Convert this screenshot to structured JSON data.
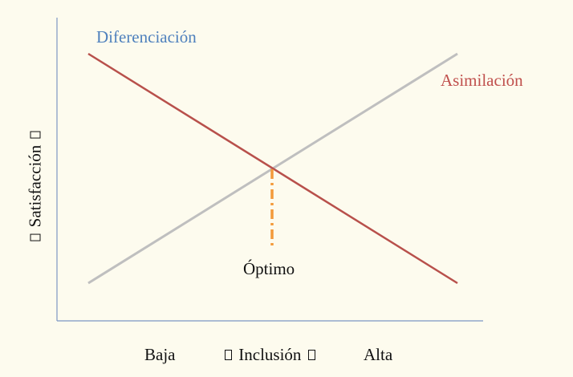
{
  "labels": {
    "diferenciacion": "Diferenciación",
    "asimilacion": "Asimilación",
    "optimo": "Óptimo"
  },
  "axes": {
    "y_title": "Satisfacción",
    "x_title": "Inclusión",
    "x_low": "Baja",
    "x_high": "Alta",
    "arrow_glyph": "box-glyph"
  },
  "colors": {
    "background": "#fdfbee",
    "diferenciacion_text": "#4f81bd",
    "red_line": "#c0504d",
    "gray_line": "#bfbfbf",
    "optimum_marker": "#f79646",
    "axis": "#6f8fbf"
  }
}
